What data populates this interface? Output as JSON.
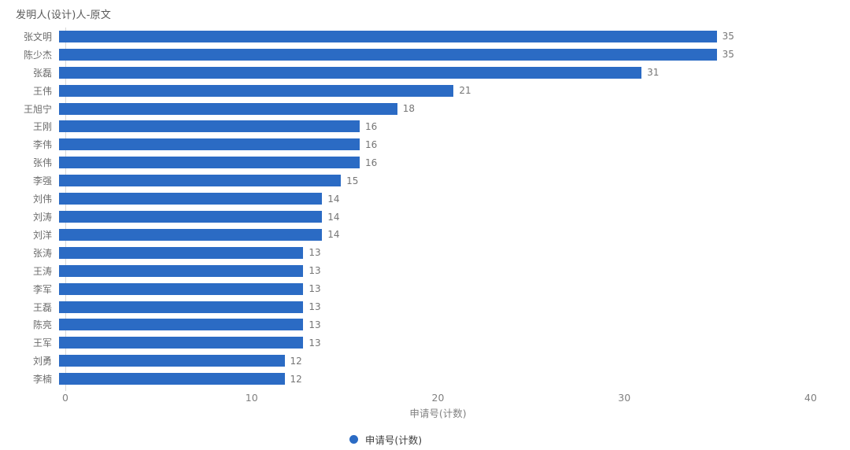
{
  "chart": {
    "title": "发明人(设计)人-原文",
    "xlabel": "申请号(计数)",
    "legend_label": "申请号(计数)"
  },
  "chart_data": {
    "type": "bar",
    "orientation": "horizontal",
    "title": "发明人(设计)人-原文",
    "categories": [
      "张文明",
      "陈少杰",
      "张磊",
      "王伟",
      "王旭宁",
      "王刚",
      "李伟",
      "张伟",
      "李强",
      "刘伟",
      "刘涛",
      "刘洋",
      "张涛",
      "王涛",
      "李军",
      "王磊",
      "陈亮",
      "王军",
      "刘勇",
      "李楠"
    ],
    "values": [
      35,
      35,
      31,
      21,
      18,
      16,
      16,
      16,
      15,
      14,
      14,
      14,
      13,
      13,
      13,
      13,
      13,
      13,
      12,
      12
    ],
    "xlabel": "申请号(计数)",
    "ylabel": "发明人(设计)人",
    "xlim": [
      0,
      40
    ],
    "xticks": [
      0,
      10,
      20,
      30,
      40
    ],
    "grid": false,
    "legend": [
      "申请号(计数)"
    ],
    "legend_position": "bottom",
    "bar_color": "#2b6bc4",
    "value_label_color": "#767676",
    "category_label_color": "#6b6b6b",
    "tick_label_color": "#808080"
  }
}
